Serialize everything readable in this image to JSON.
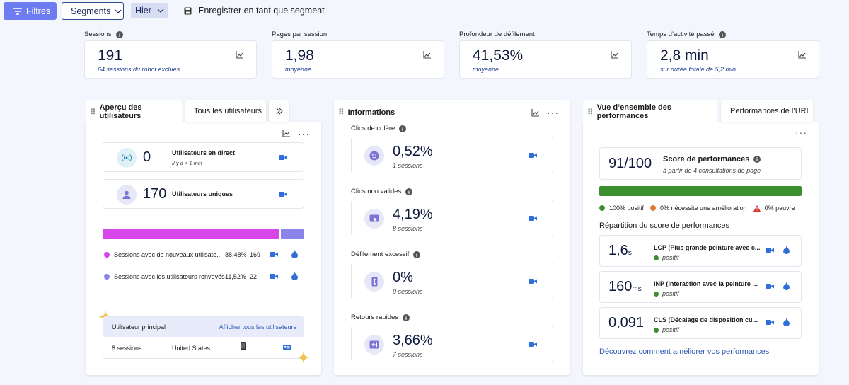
{
  "toolbar": {
    "filters_label": "Filtres",
    "segments_label": "Segments",
    "period_label": "Hier",
    "save_segment_label": "Enregistrer en tant que segment"
  },
  "kpis": [
    {
      "label": "Sessions",
      "value": "191",
      "sub": "64 sessions du robot exclues"
    },
    {
      "label": "Pages par session",
      "value": "1,98",
      "sub": "moyenne"
    },
    {
      "label": "Profondeur de défilement",
      "value": "41,53%",
      "sub": "moyenne"
    },
    {
      "label": "Temps d’activité passé",
      "value": "2,8 min",
      "sub": "sur durée totale de 5,2 min"
    }
  ],
  "users_panel": {
    "tab_active": "Aperçu des utilisateurs",
    "tab_other": "Tous les utilisateurs",
    "live_value": "0",
    "live_label": "Utilisateurs en direct",
    "live_sub": "Il y a < 1 min",
    "unique_value": "170",
    "unique_label": "Utilisateurs uniques",
    "bar_new_pct": 88.48,
    "new_color": "#d646e8",
    "returning_color": "#8b84ea",
    "rows": [
      {
        "label": "Sessions avec de nouveaux utilisate...",
        "pct": "88,48%",
        "count": "169"
      },
      {
        "label": "Sessions avec les utilisateurs renvoyés",
        "pct": "11,52%",
        "count": "22"
      }
    ],
    "top_user_title": "Utilisateur principal",
    "top_user_link": "Afficher tous les utilisateurs",
    "top_user_sessions": "8 sessions",
    "top_user_country": "United States"
  },
  "insights_panel": {
    "title": "Informations",
    "items": [
      {
        "label": "Clics de colère",
        "value": "0,52%",
        "sub": "1 sessions"
      },
      {
        "label": "Clics non valides",
        "value": "4,19%",
        "sub": "8 sessions"
      },
      {
        "label": "Défilement excessif",
        "value": "0%",
        "sub": "0 sessions"
      },
      {
        "label": "Retours rapides",
        "value": "3,66%",
        "sub": "7 sessions"
      }
    ]
  },
  "perf_panel": {
    "tab_active": "Vue d’ensemble des performances",
    "tab_other": "Performances de l’URL",
    "score_value": "91/100",
    "score_label": "Score de performances",
    "score_sub": "à partir de 4 consultations de page",
    "positive_pct": 100,
    "bar_color": "#3c8f2e",
    "legend": [
      {
        "label": "100% positif",
        "color": "#3c8f2e"
      },
      {
        "label": "0% nécessite une amélioration",
        "color": "#e07a2e"
      },
      {
        "label": "0% pauvre",
        "color": "#d42b2b"
      }
    ],
    "breakdown_title": "Répartition du score de performances",
    "metrics": [
      {
        "value": "1,6",
        "unit": "s",
        "label": "LCP (Plus grande peinture avec c...",
        "status": "positif"
      },
      {
        "value": "160",
        "unit": "ms",
        "label": "INP (Interaction avec la peinture ...",
        "status": "positif"
      },
      {
        "value": "0,091",
        "unit": "",
        "label": "CLS (Décalage de disposition cu...",
        "status": "positif"
      }
    ],
    "link": "Découvrez comment améliorer vos performances"
  }
}
